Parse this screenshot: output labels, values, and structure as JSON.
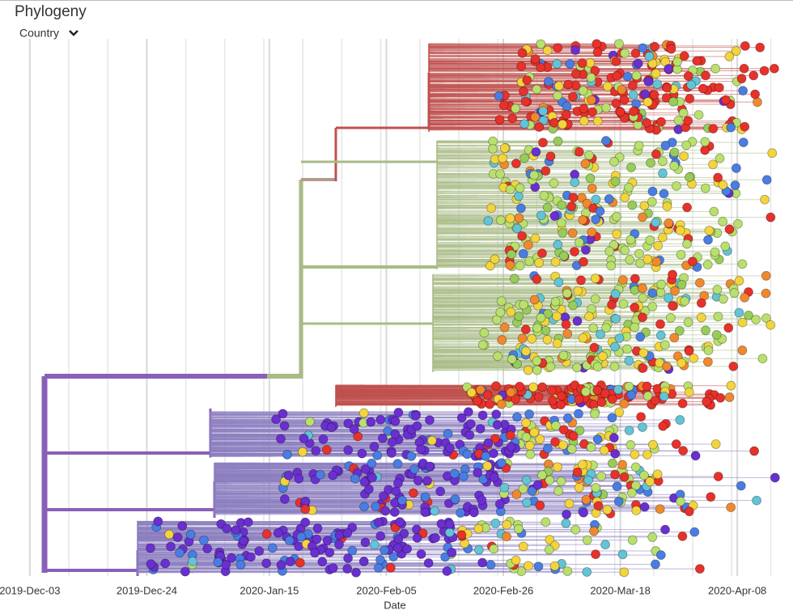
{
  "chart_data": {
    "type": "phylogeny",
    "title": "Phylogeny",
    "color_by": "Country",
    "xlabel": "Date",
    "xlim": [
      "2019-12-02",
      "2020-04-18"
    ],
    "xticks": [
      {
        "value": "2019-12-03",
        "label": "2019-Dec-03"
      },
      {
        "value": "2019-12-24",
        "label": "2019-Dec-24"
      },
      {
        "value": "2020-01-15",
        "label": "2020-Jan-15"
      },
      {
        "value": "2020-02-05",
        "label": "2020-Feb-05"
      },
      {
        "value": "2020-02-26",
        "label": "2020-Feb-26"
      },
      {
        "value": "2020-03-18",
        "label": "2020-Mar-18"
      },
      {
        "value": "2020-04-08",
        "label": "2020-Apr-08"
      }
    ],
    "grid": true,
    "tip_colors": [
      "#e8312a",
      "#b9e06c",
      "#f3d43c",
      "#f0892e",
      "#4a7de2",
      "#6a2fd0",
      "#62c4d6",
      "#98cc5a"
    ]
  }
}
